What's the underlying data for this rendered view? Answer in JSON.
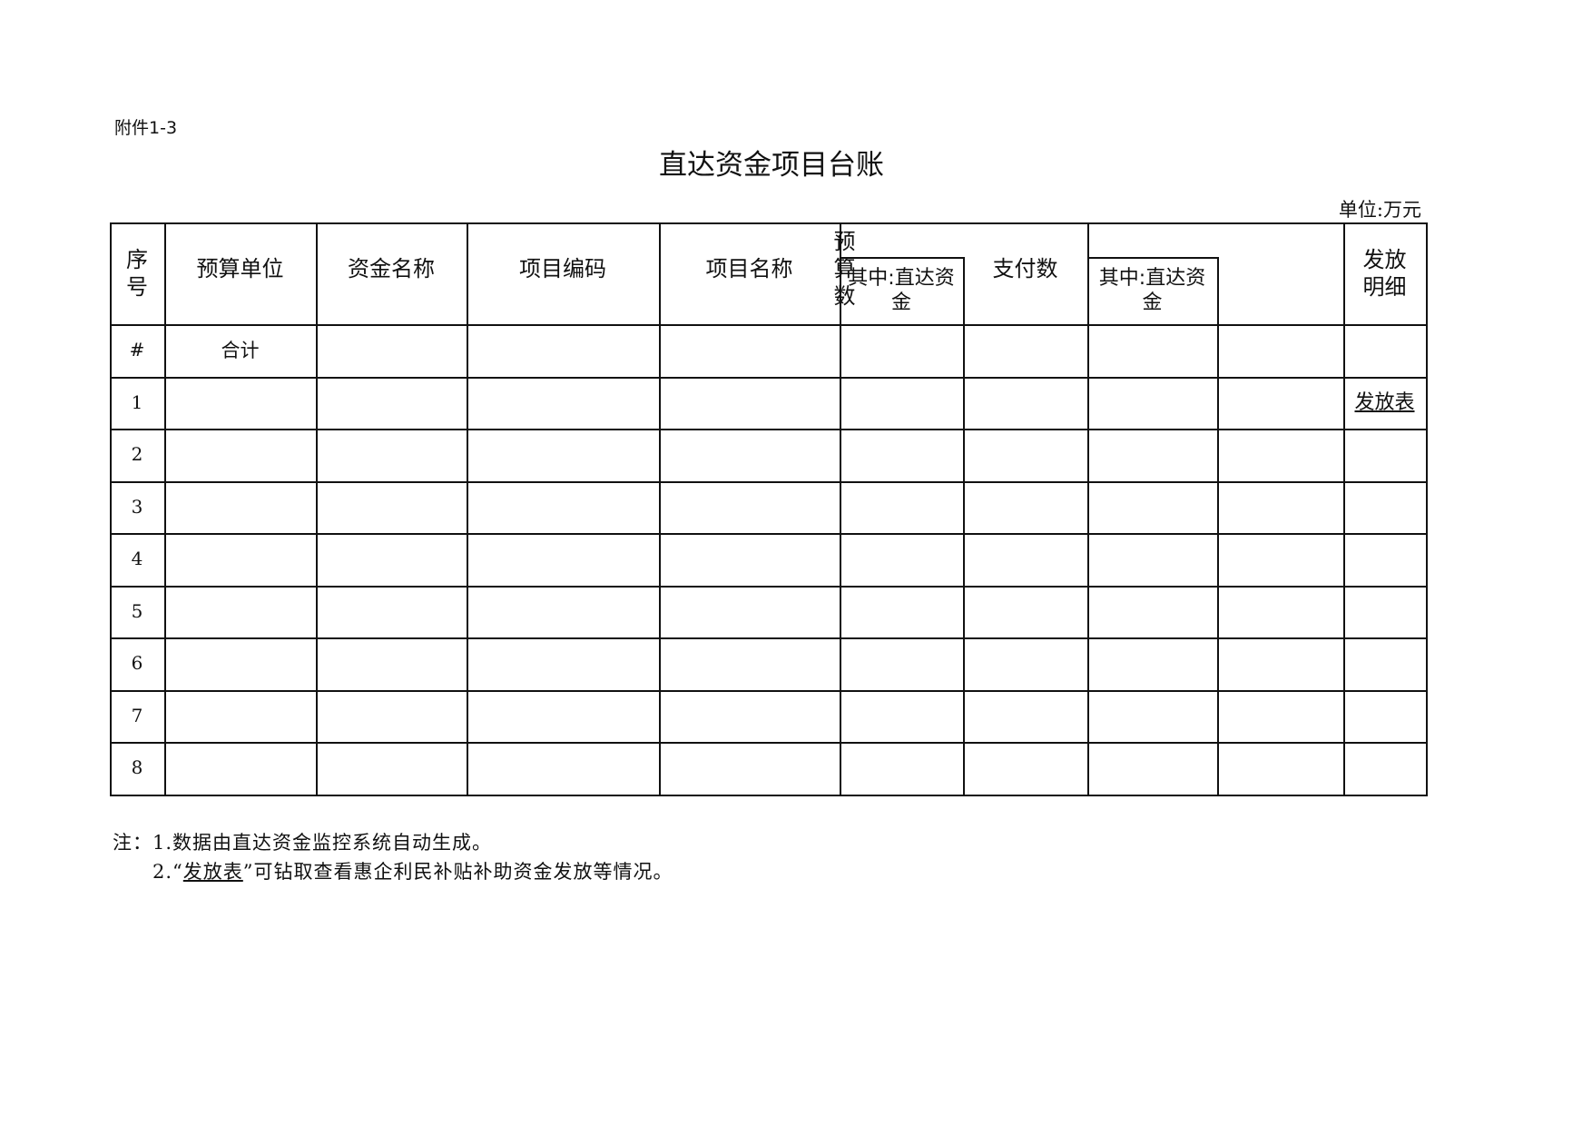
{
  "annex_label": "附件1-3",
  "title": "直达资金项目台账",
  "unit": "单位:万元",
  "table": {
    "headers": {
      "seq": "序号",
      "budget_unit": "预算单位",
      "fund_name": "资金名称",
      "project_code": "项目编码",
      "project_name": "项目名称",
      "budget_amount": "预算数",
      "budget_direct": "其中:直达资金",
      "payment_amount": "支付数",
      "payment_direct": "其中:直达资金",
      "release_detail": "发放明细"
    },
    "total_row": {
      "seq": "#",
      "budget_unit": "合计"
    },
    "rows": [
      {
        "seq": "1",
        "release_detail": "发放表"
      },
      {
        "seq": "2"
      },
      {
        "seq": "3"
      },
      {
        "seq": "4"
      },
      {
        "seq": "5"
      },
      {
        "seq": "6"
      },
      {
        "seq": "7"
      },
      {
        "seq": "8"
      }
    ]
  },
  "notes": {
    "prefix": "注：",
    "note1": "1.数据由直达资金监控系统自动生成。",
    "note2_num": "2.",
    "note2_quote_open": "“",
    "note2_link": "发放表",
    "note2_rest": "”可钻取查看惠企利民补贴补助资金发放等情况。"
  }
}
